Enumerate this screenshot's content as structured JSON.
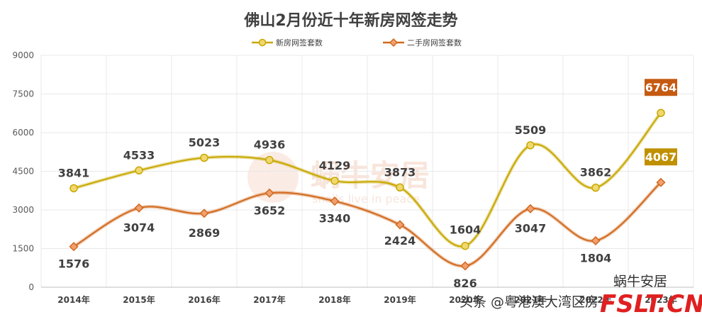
{
  "colors": {
    "new_series": "#c8a800",
    "new_series_light": "#f0d870",
    "second_series": "#d2691e",
    "second_series_light": "#f0a070",
    "callout_new": "#c55a11",
    "callout_second": "#c09000",
    "grid": "#e8e8e8"
  },
  "chart_data": {
    "type": "line",
    "title": "佛山2月份近十年新房网签走势",
    "categories": [
      "2014年",
      "2015年",
      "2016年",
      "2017年",
      "2018年",
      "2019年",
      "2020年",
      "2021年",
      "2022年",
      "2023年"
    ],
    "ylim": [
      0,
      9000
    ],
    "yticks": [
      "0",
      "1500",
      "3000",
      "4500",
      "6000",
      "7500",
      "9000"
    ],
    "grid": true,
    "legend_position": "top",
    "smooth": true,
    "series": [
      {
        "name": "新房网签套数",
        "values": [
          3841,
          4533,
          5023,
          4936,
          4129,
          3873,
          1604,
          5509,
          3862,
          6764
        ],
        "labels": [
          "3841",
          "4533",
          "5023",
          "4936",
          "4129",
          "3873",
          "1604",
          "5509",
          "3862",
          "6764"
        ],
        "marker": "circle"
      },
      {
        "name": "二手房网签套数",
        "values": [
          1576,
          3074,
          2869,
          3652,
          3340,
          2424,
          826,
          3047,
          1804,
          4067
        ],
        "labels": [
          "1576",
          "3074",
          "2869",
          "3652",
          "3340",
          "2424",
          "826",
          "3047",
          "1804",
          "4067"
        ],
        "marker": "diamond"
      }
    ]
  },
  "watermark": {
    "cn": "蜗牛安居",
    "en": "snails live in peace"
  },
  "footer": {
    "text": "头条 @粤港澳大湾区房",
    "logo_cn": "蜗牛安居",
    "logo_brand": "FSLT.CN"
  }
}
